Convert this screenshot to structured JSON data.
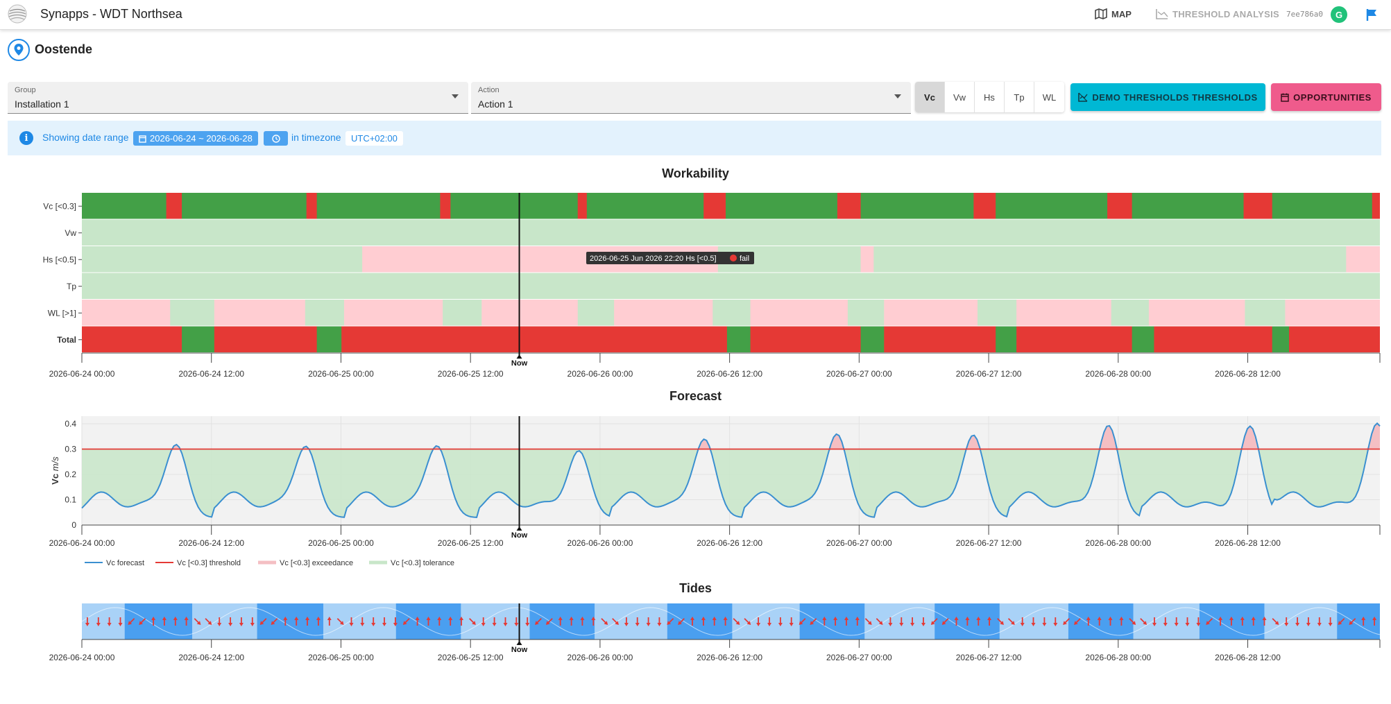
{
  "header": {
    "app_title": "Synapps - WDT Northsea",
    "nav_map": "MAP",
    "nav_threshold": "THRESHOLD ANALYSIS",
    "hash": "7ee786a0",
    "avatar_letter": "G"
  },
  "location": {
    "name": "Oostende"
  },
  "filters": {
    "group_label": "Group",
    "group_value": "Installation 1",
    "action_label": "Action",
    "action_value": "Action 1",
    "parameters": [
      "Vc",
      "Vw",
      "Hs",
      "Tp",
      "WL"
    ],
    "active_parameter": "Vc",
    "demo_button": "DEMO THRESHOLDS THRESHOLDS",
    "opportunities_button": "OPPORTUNITIES"
  },
  "info": {
    "prefix": "Showing date range",
    "date_range": "2026-06-24 ~ 2026-06-28",
    "middle": "in timezone",
    "timezone": "UTC+02:00"
  },
  "x_ticks": [
    "2026-06-24 00:00",
    "2026-06-24 12:00",
    "2026-06-25 00:00",
    "2026-06-25 12:00",
    "2026-06-26 00:00",
    "2026-06-26 12:00",
    "2026-06-27 00:00",
    "2026-06-27 12:00",
    "2026-06-28 00:00",
    "2026-06-28 12:00"
  ],
  "now_label": "Now",
  "workability": {
    "title": "Workability",
    "rows": [
      "Vc [<0.3]",
      "Vw",
      "Hs [<0.5]",
      "Tp",
      "WL [>1]",
      "Total"
    ],
    "tooltip": "2026-06-25 Jun 2026 22:20 Hs [<0.5]",
    "tooltip_status": "fail",
    "colors": {
      "ok": "#43a047",
      "fail": "#e53935",
      "tol": "#c8e6c9",
      "exc": "#ffcdd2"
    }
  },
  "forecast": {
    "title": "Forecast",
    "ylabel_bold": "Vc",
    "ylabel_unit": "m/s",
    "y_ticks": [
      "0",
      "0.1",
      "0.2",
      "0.3",
      "0.4"
    ],
    "legend": [
      "Vc forecast",
      "Vc [<0.3] threshold",
      "Vc [<0.3] exceedance",
      "Vc [<0.3] tolerance"
    ]
  },
  "tides": {
    "title": "Tides"
  },
  "chart_data": [
    {
      "type": "heatmap",
      "title": "Workability",
      "y_categories": [
        "Vc [<0.3]",
        "Vw",
        "Hs [<0.5]",
        "Tp",
        "WL [>1]",
        "Total"
      ],
      "x_range": [
        "2026-06-24 00:00",
        "2026-06-28 12:00"
      ],
      "now": "2026-06-25 18:20"
    },
    {
      "type": "line",
      "title": "Forecast",
      "series": [
        {
          "name": "Vc forecast",
          "color": "#3a8fd0"
        },
        {
          "name": "Vc [<0.3] threshold",
          "color": "#e53935"
        }
      ],
      "threshold": 0.3,
      "ylim": [
        0,
        0.43
      ],
      "yticks": [
        0,
        0.1,
        0.2,
        0.3,
        0.4
      ],
      "ylabel": "Vc m/s"
    },
    {
      "type": "area",
      "title": "Tides"
    }
  ]
}
